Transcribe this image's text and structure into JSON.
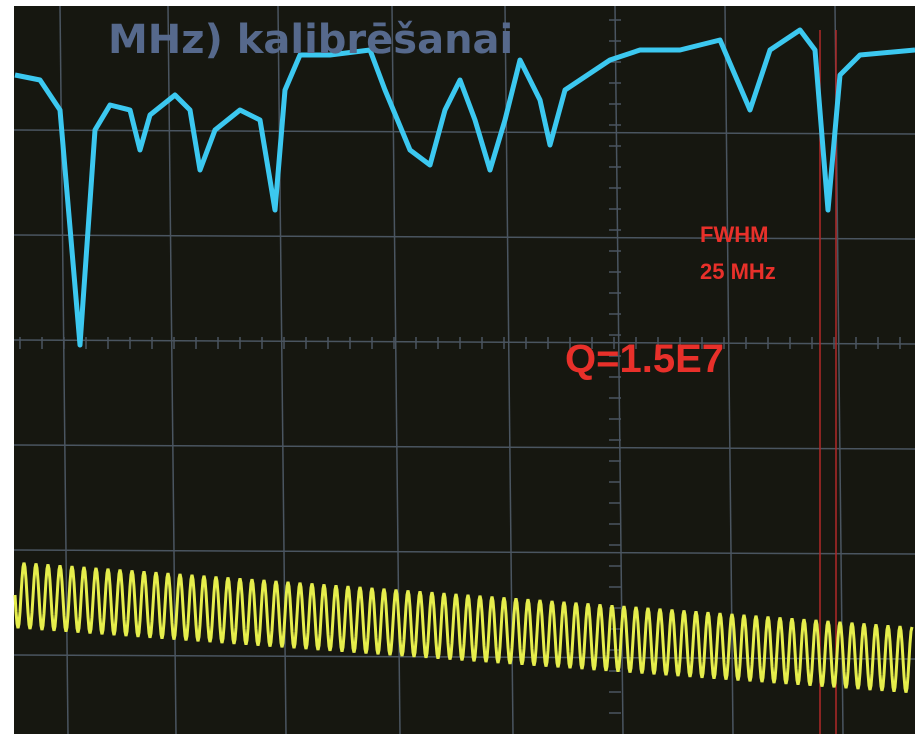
{
  "title": "MHz)  kalibrēšanai",
  "annotations": {
    "fwhm_label": "FWHM",
    "fwhm_value": "25 MHz",
    "q_factor": "Q=1.5E7"
  }
}
